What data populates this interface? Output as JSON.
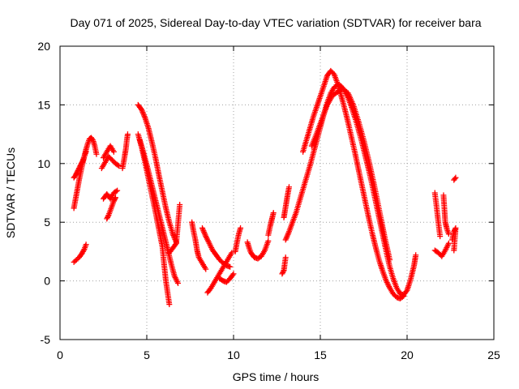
{
  "chart_data": {
    "type": "scatter",
    "title": "Day 071 of 2025, Sidereal Day-to-day VTEC variation (SDTVAR) for receiver bara",
    "xlabel": "GPS time / hours",
    "ylabel": "SDTVAR / TECUs",
    "xlim": [
      0,
      25
    ],
    "ylim": [
      -5,
      20
    ],
    "xticks": [
      0,
      5,
      10,
      15,
      20,
      25
    ],
    "yticks": [
      -5,
      0,
      5,
      10,
      15,
      20
    ],
    "grid": true,
    "marker": "+",
    "marker_color": "#ff0000",
    "series": [
      {
        "name": "SDTVAR",
        "segments": [
          [
            [
              0.8,
              6.2
            ],
            [
              0.9,
              7.0
            ],
            [
              1.0,
              7.8
            ],
            [
              1.1,
              8.6
            ],
            [
              1.2,
              9.3
            ],
            [
              1.3,
              10.0
            ],
            [
              1.4,
              10.6
            ],
            [
              1.5,
              11.2
            ],
            [
              1.6,
              11.7
            ],
            [
              1.7,
              12.1
            ],
            [
              1.8,
              12.2
            ],
            [
              1.9,
              12.0
            ],
            [
              2.0,
              11.5
            ],
            [
              2.1,
              10.8
            ]
          ],
          [
            [
              0.8,
              8.8
            ],
            [
              0.9,
              9.0
            ],
            [
              1.0,
              9.3
            ],
            [
              1.1,
              9.6
            ],
            [
              1.2,
              9.9
            ],
            [
              1.3,
              10.2
            ],
            [
              1.4,
              10.6
            ],
            [
              1.5,
              11.0
            ]
          ],
          [
            [
              0.8,
              1.6
            ],
            [
              0.95,
              1.8
            ],
            [
              1.1,
              2.0
            ],
            [
              1.25,
              2.3
            ],
            [
              1.4,
              2.7
            ],
            [
              1.5,
              3.1
            ]
          ],
          [
            [
              2.5,
              7.0
            ],
            [
              2.7,
              7.4
            ],
            [
              2.9,
              7.0
            ],
            [
              3.1,
              7.5
            ],
            [
              3.3,
              7.7
            ]
          ],
          [
            [
              2.7,
              5.3
            ],
            [
              2.8,
              5.6
            ],
            [
              2.9,
              6.0
            ],
            [
              3.0,
              6.4
            ],
            [
              3.1,
              6.8
            ],
            [
              3.2,
              7.1
            ]
          ],
          [
            [
              2.4,
              9.6
            ],
            [
              2.6,
              10.1
            ],
            [
              2.8,
              10.6
            ],
            [
              3.0,
              10.3
            ],
            [
              3.2,
              10.0
            ],
            [
              3.4,
              9.8
            ]
          ],
          [
            [
              2.5,
              10.5
            ],
            [
              2.7,
              11.0
            ],
            [
              2.9,
              11.5
            ],
            [
              3.1,
              11.0
            ]
          ],
          [
            [
              3.6,
              9.6
            ],
            [
              3.7,
              10.4
            ],
            [
              3.8,
              11.3
            ],
            [
              3.85,
              12.0
            ],
            [
              3.9,
              12.5
            ]
          ],
          [
            [
              4.5,
              15.0
            ],
            [
              4.7,
              14.6
            ],
            [
              4.9,
              13.9
            ],
            [
              5.1,
              13.0
            ],
            [
              5.3,
              11.8
            ],
            [
              5.5,
              10.5
            ],
            [
              5.7,
              9.0
            ],
            [
              5.9,
              7.6
            ],
            [
              6.1,
              6.2
            ],
            [
              6.3,
              5.0
            ],
            [
              6.5,
              4.0
            ],
            [
              6.7,
              3.3
            ]
          ],
          [
            [
              4.5,
              12.5
            ],
            [
              4.7,
              11.4
            ],
            [
              4.9,
              10.1
            ],
            [
              5.1,
              8.7
            ],
            [
              5.3,
              7.3
            ],
            [
              5.5,
              5.9
            ],
            [
              5.7,
              4.4
            ],
            [
              5.9,
              2.9
            ],
            [
              6.0,
              1.4
            ],
            [
              6.1,
              0.0
            ],
            [
              6.2,
              -1.0
            ],
            [
              6.3,
              -2.0
            ]
          ],
          [
            [
              4.6,
              12.0
            ],
            [
              4.8,
              11.0
            ],
            [
              5.0,
              9.9
            ],
            [
              5.2,
              8.7
            ],
            [
              5.4,
              7.5
            ],
            [
              5.6,
              6.3
            ],
            [
              5.8,
              5.1
            ],
            [
              6.0,
              3.9
            ],
            [
              6.2,
              2.7
            ],
            [
              6.4,
              1.5
            ],
            [
              6.6,
              0.4
            ],
            [
              6.8,
              -0.2
            ]
          ],
          [
            [
              6.3,
              2.4
            ],
            [
              6.5,
              2.8
            ],
            [
              6.7,
              3.2
            ],
            [
              6.9,
              6.5
            ]
          ],
          [
            [
              7.6,
              5.0
            ],
            [
              7.7,
              4.2
            ],
            [
              7.8,
              3.5
            ],
            [
              7.9,
              2.6
            ],
            [
              8.0,
              2.0
            ],
            [
              8.2,
              1.5
            ],
            [
              8.4,
              1.0
            ]
          ],
          [
            [
              8.5,
              -1.0
            ],
            [
              8.7,
              -0.6
            ],
            [
              8.9,
              -0.1
            ],
            [
              9.1,
              0.4
            ],
            [
              9.3,
              0.9
            ],
            [
              9.5,
              1.4
            ],
            [
              9.7,
              1.9
            ],
            [
              9.9,
              2.4
            ]
          ],
          [
            [
              8.2,
              4.5
            ],
            [
              8.4,
              3.8
            ],
            [
              8.6,
              3.2
            ],
            [
              8.8,
              2.6
            ],
            [
              9.0,
              2.2
            ],
            [
              9.2,
              1.8
            ],
            [
              9.4,
              1.5
            ],
            [
              9.6,
              1.3
            ],
            [
              9.8,
              1.2
            ]
          ],
          [
            [
              9.2,
              0.2
            ],
            [
              9.4,
              0.0
            ],
            [
              9.6,
              -0.1
            ],
            [
              9.8,
              0.2
            ],
            [
              10.0,
              0.6
            ]
          ],
          [
            [
              10.1,
              2.5
            ],
            [
              10.2,
              3.3
            ],
            [
              10.3,
              4.0
            ],
            [
              10.4,
              4.5
            ]
          ],
          [
            [
              10.8,
              3.3
            ],
            [
              10.9,
              2.8
            ],
            [
              11.0,
              2.4
            ],
            [
              11.2,
              2.0
            ],
            [
              11.4,
              1.9
            ],
            [
              11.6,
              2.1
            ],
            [
              11.8,
              2.6
            ],
            [
              11.9,
              3.0
            ],
            [
              12.0,
              3.4
            ]
          ],
          [
            [
              12.0,
              3.9
            ],
            [
              12.1,
              4.6
            ],
            [
              12.2,
              5.2
            ],
            [
              12.3,
              5.8
            ]
          ],
          [
            [
              12.8,
              0.6
            ],
            [
              12.9,
              0.9
            ],
            [
              13.0,
              2.0
            ]
          ],
          [
            [
              12.9,
              5.4
            ],
            [
              13.0,
              6.3
            ],
            [
              13.1,
              7.2
            ],
            [
              13.2,
              8.0
            ]
          ],
          [
            [
              13.0,
              3.5
            ],
            [
              13.2,
              4.2
            ],
            [
              13.4,
              5.0
            ],
            [
              13.6,
              5.8
            ],
            [
              13.8,
              6.8
            ],
            [
              14.0,
              7.8
            ],
            [
              14.2,
              8.8
            ],
            [
              14.4,
              9.8
            ],
            [
              14.6,
              10.9
            ],
            [
              14.8,
              12.0
            ],
            [
              15.0,
              13.1
            ],
            [
              15.2,
              14.2
            ],
            [
              15.4,
              15.2
            ],
            [
              15.6,
              16.0
            ],
            [
              15.8,
              16.5
            ],
            [
              16.0,
              16.7
            ],
            [
              16.2,
              16.6
            ],
            [
              16.4,
              16.2
            ],
            [
              16.6,
              15.6
            ],
            [
              16.8,
              14.8
            ],
            [
              17.0,
              13.9
            ],
            [
              17.2,
              12.9
            ],
            [
              17.4,
              11.8
            ],
            [
              17.6,
              10.6
            ],
            [
              17.8,
              9.4
            ],
            [
              18.0,
              8.1
            ],
            [
              18.2,
              6.7
            ],
            [
              18.4,
              5.3
            ],
            [
              18.6,
              3.9
            ],
            [
              18.8,
              2.5
            ],
            [
              19.0,
              1.2
            ],
            [
              19.2,
              0.2
            ],
            [
              19.4,
              -0.6
            ],
            [
              19.6,
              -1.1
            ],
            [
              19.8,
              -1.2
            ],
            [
              20.0,
              -0.8
            ],
            [
              20.2,
              0.1
            ],
            [
              20.4,
              1.3
            ],
            [
              20.5,
              2.2
            ]
          ],
          [
            [
              14.0,
              11.0
            ],
            [
              14.3,
              12.5
            ],
            [
              14.6,
              14.0
            ],
            [
              14.9,
              15.3
            ],
            [
              15.2,
              16.6
            ],
            [
              15.4,
              17.5
            ],
            [
              15.6,
              17.9
            ],
            [
              15.8,
              17.6
            ],
            [
              16.0,
              16.8
            ],
            [
              16.2,
              15.8
            ],
            [
              16.4,
              14.7
            ],
            [
              16.6,
              13.5
            ],
            [
              16.8,
              12.2
            ],
            [
              17.0,
              10.9
            ],
            [
              17.2,
              9.5
            ],
            [
              17.4,
              8.1
            ],
            [
              17.6,
              6.7
            ],
            [
              17.8,
              5.3
            ],
            [
              18.0,
              4.0
            ],
            [
              18.2,
              2.8
            ],
            [
              18.4,
              1.7
            ],
            [
              18.6,
              0.8
            ],
            [
              18.8,
              0.0
            ],
            [
              19.0,
              -0.6
            ],
            [
              19.2,
              -1.1
            ],
            [
              19.4,
              -1.4
            ],
            [
              19.6,
              -1.5
            ],
            [
              19.8,
              -1.3
            ]
          ],
          [
            [
              14.5,
              11.5
            ],
            [
              14.8,
              12.6
            ],
            [
              15.1,
              13.8
            ],
            [
              15.4,
              15.0
            ],
            [
              15.7,
              15.8
            ],
            [
              16.0,
              16.1
            ],
            [
              16.3,
              16.4
            ],
            [
              16.6,
              16.0
            ],
            [
              16.9,
              15.0
            ],
            [
              17.2,
              13.6
            ],
            [
              17.5,
              12.0
            ],
            [
              17.8,
              10.2
            ],
            [
              18.1,
              8.2
            ],
            [
              18.4,
              6.0
            ],
            [
              18.7,
              3.8
            ],
            [
              19.0,
              1.8
            ]
          ],
          [
            [
              21.6,
              7.5
            ],
            [
              21.7,
              6.3
            ],
            [
              21.8,
              5.0
            ],
            [
              21.9,
              3.8
            ]
          ],
          [
            [
              21.6,
              2.6
            ],
            [
              21.8,
              2.4
            ],
            [
              22.0,
              2.1
            ],
            [
              22.2,
              2.6
            ],
            [
              22.4,
              3.2
            ]
          ],
          [
            [
              22.1,
              7.3
            ],
            [
              22.2,
              5.0
            ],
            [
              22.3,
              4.4
            ],
            [
              22.4,
              4.0
            ]
          ],
          [
            [
              22.6,
              3.5
            ],
            [
              22.7,
              4.2
            ],
            [
              22.8,
              4.5
            ],
            [
              22.7,
              2.6
            ]
          ],
          [
            [
              22.7,
              8.6
            ],
            [
              22.8,
              8.8
            ]
          ]
        ]
      }
    ]
  }
}
